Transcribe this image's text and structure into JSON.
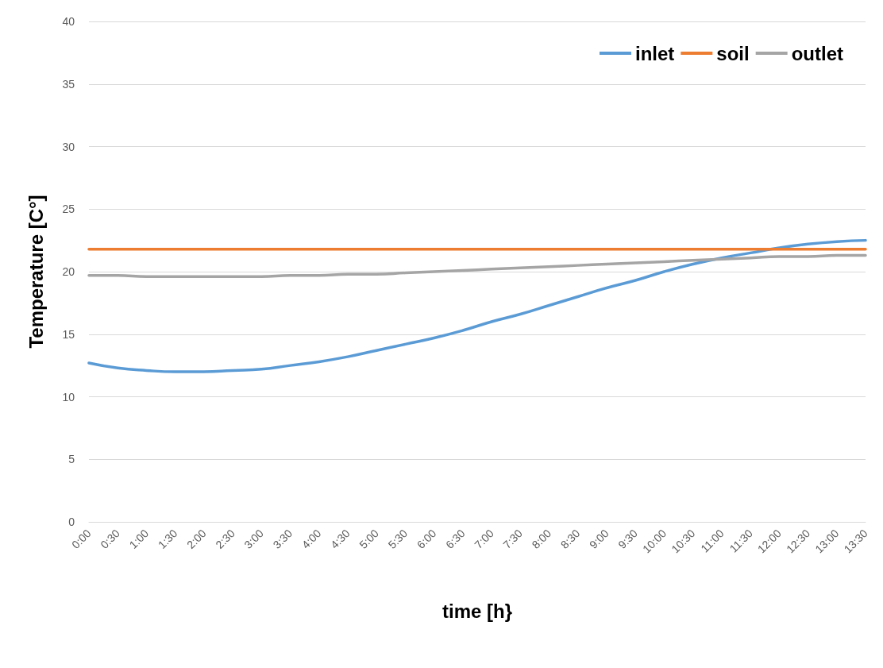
{
  "chart_data": {
    "type": "line",
    "xlabel": "time [h}",
    "ylabel": "Temperature [C°]",
    "categories": [
      "0:00",
      "0:30",
      "1:00",
      "1:30",
      "2:00",
      "2:30",
      "3:00",
      "3:30",
      "4:00",
      "4:30",
      "5:00",
      "5:30",
      "6:00",
      "6:30",
      "7:00",
      "7:30",
      "8:00",
      "8:30",
      "9:00",
      "9:30",
      "10:00",
      "10:30",
      "11:00",
      "11:30",
      "12:00",
      "12:30",
      "13:00",
      "13:30"
    ],
    "series": [
      {
        "name": "inlet",
        "color": "#5b9bd5",
        "values": [
          12.7,
          12.3,
          12.1,
          12.0,
          12.0,
          12.1,
          12.2,
          12.5,
          12.8,
          13.2,
          13.7,
          14.2,
          14.7,
          15.3,
          16.0,
          16.6,
          17.3,
          18.0,
          18.7,
          19.3,
          20.0,
          20.6,
          21.1,
          21.5,
          21.9,
          22.2,
          22.4,
          22.5
        ]
      },
      {
        "name": "soil",
        "color": "#ed7d31",
        "values": [
          21.8,
          21.8,
          21.8,
          21.8,
          21.8,
          21.8,
          21.8,
          21.8,
          21.8,
          21.8,
          21.8,
          21.8,
          21.8,
          21.8,
          21.8,
          21.8,
          21.8,
          21.8,
          21.8,
          21.8,
          21.8,
          21.8,
          21.8,
          21.8,
          21.8,
          21.8,
          21.8,
          21.8
        ]
      },
      {
        "name": "outlet",
        "color": "#a5a5a5",
        "values": [
          19.7,
          19.7,
          19.6,
          19.6,
          19.6,
          19.6,
          19.6,
          19.7,
          19.7,
          19.8,
          19.8,
          19.9,
          20.0,
          20.1,
          20.2,
          20.3,
          20.4,
          20.5,
          20.6,
          20.7,
          20.8,
          20.9,
          21.0,
          21.1,
          21.2,
          21.2,
          21.3,
          21.3
        ]
      }
    ],
    "ylim": [
      0,
      40
    ],
    "yticks": [
      0,
      5,
      10,
      15,
      20,
      25,
      30,
      35,
      40
    ],
    "grid": "y",
    "legend": "top right",
    "marker": "none",
    "line_style": "solid"
  }
}
